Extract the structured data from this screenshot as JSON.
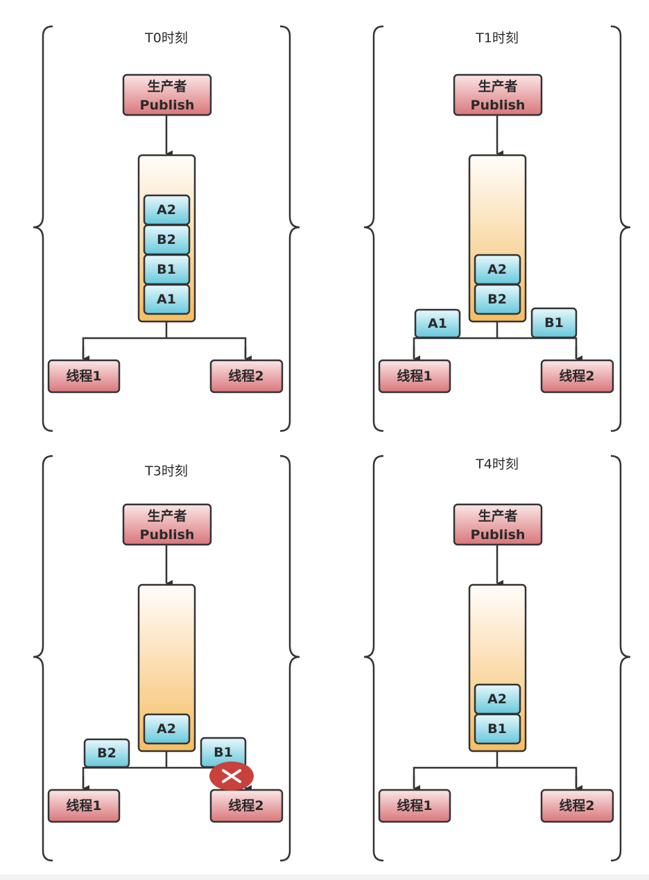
{
  "colors": {
    "producer_top": "#fbe6e6",
    "producer_bottom": "#d9767a",
    "queue_top": "#fffdfb",
    "queue_bottom": "#f6bd62",
    "item_top": "#e8f8fb",
    "item_bottom": "#66c8dc",
    "stroke": "#333333",
    "blocked": "#c8413b"
  },
  "panels": [
    {
      "title": "T0时刻",
      "producer": {
        "line1": "生产者",
        "line2": "Publish"
      },
      "queue_items": [
        "A2",
        "B2",
        "B1",
        "A1"
      ],
      "to_thread1": null,
      "to_thread2": null,
      "threads": [
        "线程1",
        "线程2"
      ],
      "thread2_blocked": false
    },
    {
      "title": "T1时刻",
      "producer": {
        "line1": "生产者",
        "line2": "Publish"
      },
      "queue_items": [
        "A2",
        "B2"
      ],
      "to_thread1": "A1",
      "to_thread2": "B1",
      "threads": [
        "线程1",
        "线程2"
      ],
      "thread2_blocked": false
    },
    {
      "title": "T3时刻",
      "producer": {
        "line1": "生产者",
        "line2": "Publish"
      },
      "queue_items": [
        "A2"
      ],
      "to_thread1": "B2",
      "to_thread2": "B1",
      "threads": [
        "线程1",
        "线程2"
      ],
      "thread2_blocked": true,
      "blocked_icon": "x-icon"
    },
    {
      "title": "T4时刻",
      "producer": {
        "line1": "生产者",
        "line2": "Publish"
      },
      "queue_items": [
        "A2",
        "B1"
      ],
      "to_thread1": null,
      "to_thread2": null,
      "threads": [
        "线程1",
        "线程2"
      ],
      "thread2_blocked": false
    }
  ]
}
